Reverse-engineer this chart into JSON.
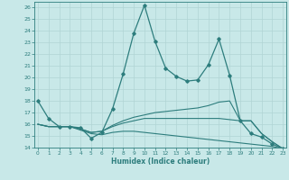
{
  "xlabel": "Humidex (Indice chaleur)",
  "x": [
    0,
    1,
    2,
    3,
    4,
    5,
    6,
    7,
    8,
    9,
    10,
    11,
    12,
    13,
    14,
    15,
    16,
    17,
    18,
    19,
    20,
    21,
    22,
    23
  ],
  "line1": [
    18.0,
    16.5,
    15.8,
    15.8,
    15.7,
    14.8,
    15.3,
    17.3,
    20.3,
    23.8,
    26.2,
    23.1,
    20.8,
    20.1,
    19.7,
    19.8,
    21.1,
    23.3,
    20.2,
    16.3,
    15.2,
    14.9,
    14.3,
    13.9
  ],
  "line2": [
    16.0,
    15.8,
    15.8,
    15.8,
    15.6,
    15.3,
    15.4,
    15.9,
    16.3,
    16.6,
    16.8,
    17.0,
    17.1,
    17.2,
    17.3,
    17.4,
    17.6,
    17.9,
    18.0,
    16.3,
    16.3,
    15.2,
    14.5,
    13.9
  ],
  "line3": [
    16.0,
    15.8,
    15.8,
    15.8,
    15.6,
    15.3,
    15.4,
    15.8,
    16.1,
    16.3,
    16.5,
    16.5,
    16.5,
    16.5,
    16.5,
    16.5,
    16.5,
    16.5,
    16.4,
    16.3,
    16.3,
    15.2,
    14.5,
    13.9
  ],
  "line4": [
    16.0,
    15.8,
    15.8,
    15.8,
    15.5,
    15.2,
    15.1,
    15.3,
    15.4,
    15.4,
    15.3,
    15.2,
    15.1,
    15.0,
    14.9,
    14.8,
    14.7,
    14.6,
    14.5,
    14.4,
    14.3,
    14.2,
    14.1,
    13.9
  ],
  "line_color": "#2d7d7d",
  "bg_color": "#c8e8e8",
  "grid_color": "#b0d4d4",
  "ylim": [
    14,
    26.5
  ],
  "yticks": [
    14,
    15,
    16,
    17,
    18,
    19,
    20,
    21,
    22,
    23,
    24,
    25,
    26
  ],
  "xlim": [
    -0.3,
    23.3
  ],
  "xticks": [
    0,
    1,
    2,
    3,
    4,
    5,
    6,
    7,
    8,
    9,
    10,
    11,
    12,
    13,
    14,
    15,
    16,
    17,
    18,
    19,
    20,
    21,
    22,
    23
  ]
}
